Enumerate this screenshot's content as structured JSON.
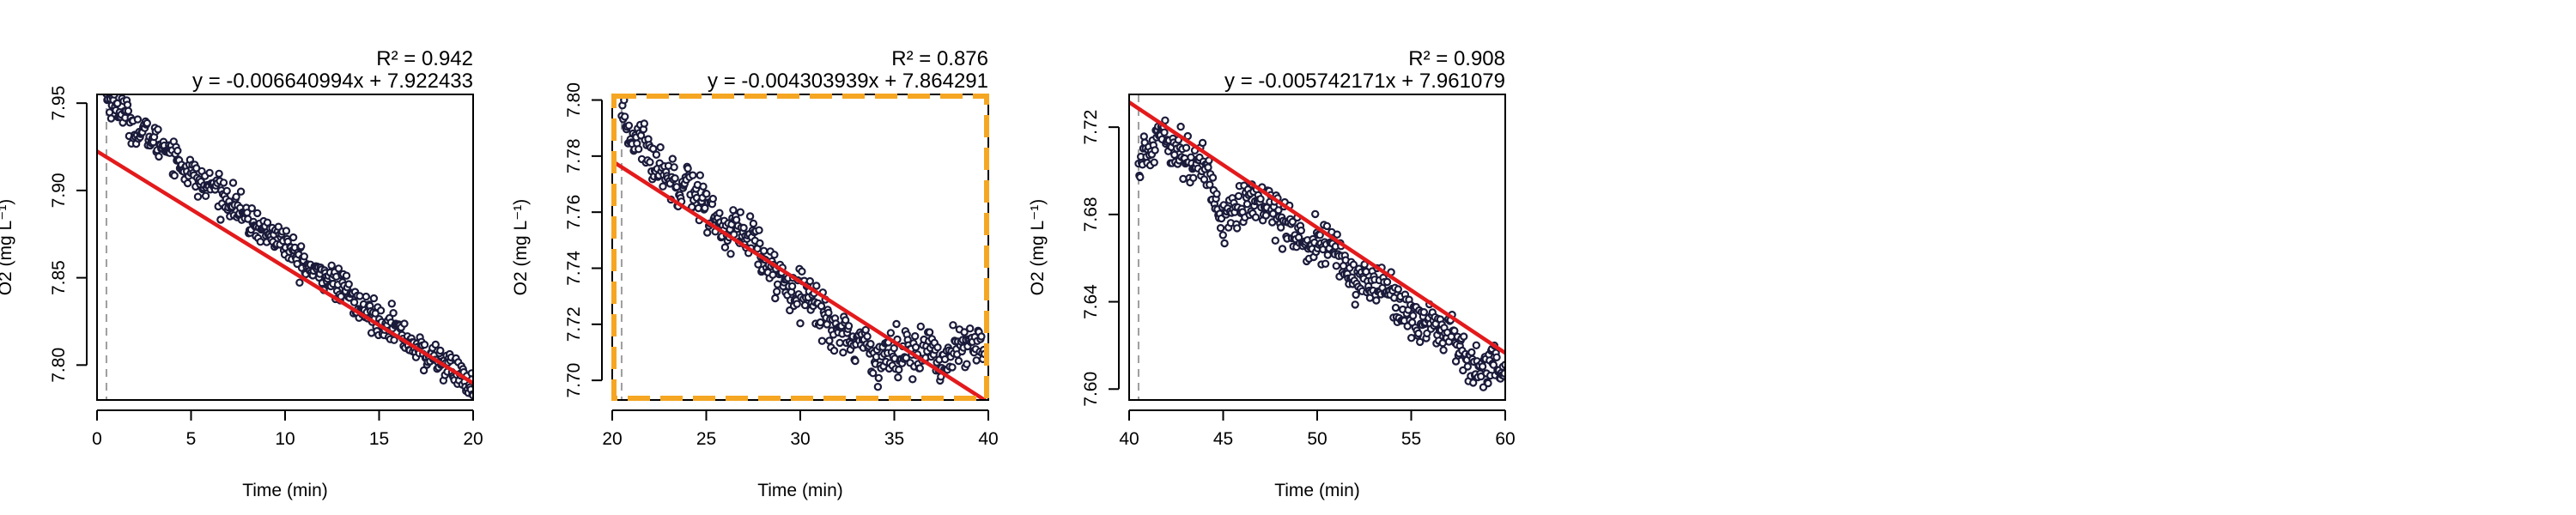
{
  "chart_data": [
    {
      "type": "scatter",
      "xlabel": "Time (min)",
      "ylabel": "O2 (mg L⁻¹)",
      "xlim": [
        0,
        20
      ],
      "ylim": [
        7.78,
        7.955
      ],
      "x_ticks": [
        0,
        5,
        10,
        15,
        20
      ],
      "y_ticks": [
        7.8,
        7.85,
        7.9,
        7.95
      ],
      "r2_label": "R² = 0.942",
      "equation": "y = -0.006640994x + 7.922433",
      "fit": {
        "slope": -0.006640994,
        "intercept": 7.922433
      },
      "marker_x": 0.5,
      "highlighted": false,
      "points": {
        "x_start": 0.5,
        "x_end": 20,
        "count": 470,
        "start_y": 7.952,
        "end_y": 7.788,
        "curvature": 0.055,
        "noise": 0.0045,
        "wave": 0.002,
        "dip": null
      }
    },
    {
      "type": "scatter",
      "xlabel": "Time (min)",
      "ylabel": "O2 (mg L⁻¹)",
      "xlim": [
        20,
        40
      ],
      "ylim": [
        7.693,
        7.802
      ],
      "x_ticks": [
        20,
        25,
        30,
        35,
        40
      ],
      "y_ticks": [
        7.7,
        7.72,
        7.74,
        7.76,
        7.78,
        7.8
      ],
      "r2_label": "R² = 0.876",
      "equation": "y = -0.004303939x + 7.864291",
      "fit": {
        "slope": -0.004303939,
        "intercept": 7.864291
      },
      "marker_x": 20.5,
      "highlighted": true,
      "points": {
        "x_start": 20.5,
        "x_end": 39.8,
        "count": 450,
        "start_y": 7.79,
        "end_y": 7.71,
        "curvature": 0.0,
        "noise": 0.004,
        "wave": 0.002,
        "dip": null,
        "plateau_from": 33.5,
        "plateau_y": 7.71
      }
    },
    {
      "type": "scatter",
      "xlabel": "Time (min)",
      "ylabel": "O2 (mg L⁻¹)",
      "xlim": [
        40,
        60
      ],
      "ylim": [
        7.595,
        7.735
      ],
      "x_ticks": [
        40,
        45,
        50,
        55,
        60
      ],
      "y_ticks": [
        7.6,
        7.64,
        7.68,
        7.72
      ],
      "r2_label": "R² = 0.908",
      "equation": "y = -0.005742171x + 7.961079",
      "fit": {
        "slope": -0.005742171,
        "intercept": 7.961079
      },
      "marker_x": 40.5,
      "highlighted": false,
      "points": {
        "x_start": 40.5,
        "x_end": 60,
        "count": 470,
        "start_y": 7.703,
        "end_y": 7.605,
        "curvature": 0.0,
        "noise": 0.005,
        "wave": 0.003,
        "dip": {
          "center": 45,
          "depth": 0.02,
          "width": 0.7
        },
        "rise_until": 41.8,
        "rise_to": 7.716
      }
    }
  ],
  "colors": {
    "points_edge": "#1a1a3a",
    "fit_line": "#e31a1c",
    "marker_line": "#9e9e9e",
    "highlight": "#f5a623"
  }
}
